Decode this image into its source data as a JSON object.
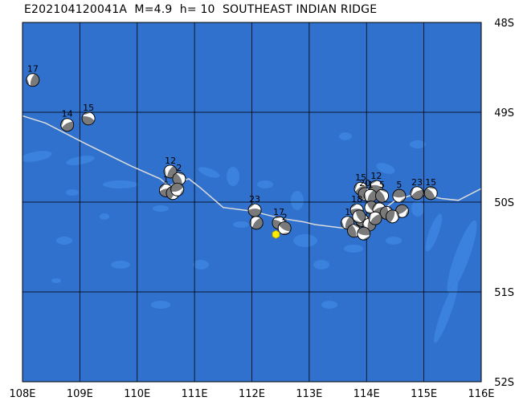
{
  "title": "E202104120041A  M=4.9  h= 10  SOUTHEAST INDIAN RIDGE",
  "map": {
    "lon_range": [
      108,
      116
    ],
    "lat_range": [
      -52,
      -48
    ],
    "lon_ticks": [
      {
        "value": 108,
        "label": "108E"
      },
      {
        "value": 109,
        "label": "109E"
      },
      {
        "value": 110,
        "label": "110E"
      },
      {
        "value": 111,
        "label": "111E"
      },
      {
        "value": 112,
        "label": "112E"
      },
      {
        "value": 113,
        "label": "113E"
      },
      {
        "value": 114,
        "label": "114E"
      },
      {
        "value": 115,
        "label": "115E"
      },
      {
        "value": 116,
        "label": "116E"
      }
    ],
    "lat_ticks": [
      {
        "value": -48,
        "label": "48S"
      },
      {
        "value": -49,
        "label": "49S"
      },
      {
        "value": -50,
        "label": "50S"
      },
      {
        "value": -51,
        "label": "51S"
      },
      {
        "value": -52,
        "label": "52S"
      }
    ],
    "colors": {
      "ocean": "#2f71cc",
      "deep": "#3c84e0",
      "grid": "#000000",
      "ridge": "#dcdcdc",
      "mechanism_dark": "#7a7a7a",
      "mechanism_light": "#ffffff",
      "epicenter": "#ffee00"
    },
    "ridge_line": [
      [
        108.0,
        -49.04
      ],
      [
        108.4,
        -49.12
      ],
      [
        109.1,
        -49.35
      ],
      [
        109.9,
        -49.6
      ],
      [
        110.4,
        -49.74
      ],
      [
        110.55,
        -49.82
      ],
      [
        110.9,
        -49.74
      ],
      [
        111.1,
        -49.84
      ],
      [
        111.5,
        -50.06
      ],
      [
        112.0,
        -50.1
      ],
      [
        112.5,
        -50.18
      ],
      [
        112.9,
        -50.22
      ],
      [
        113.1,
        -50.25
      ],
      [
        113.6,
        -50.29
      ],
      [
        114.0,
        -50.23
      ],
      [
        114.5,
        -49.98
      ],
      [
        114.9,
        -49.9
      ],
      [
        115.3,
        -49.96
      ],
      [
        115.6,
        -49.98
      ],
      [
        116.0,
        -49.85
      ]
    ],
    "epicenter": {
      "lon": 112.42,
      "lat": -50.36
    },
    "events": [
      {
        "lon": 108.18,
        "lat": -48.64,
        "label": "17",
        "rot": 20
      },
      {
        "lon": 108.78,
        "lat": -49.14,
        "label": "14",
        "rot": 60
      },
      {
        "lon": 109.15,
        "lat": -49.07,
        "label": "15",
        "rot": 110
      },
      {
        "lon": 110.58,
        "lat": -49.66,
        "label": "12",
        "rot": 30
      },
      {
        "lon": 110.73,
        "lat": -49.74,
        "label": "2",
        "rot": 150
      },
      {
        "lon": 110.5,
        "lat": -49.87,
        "label": "1",
        "rot": 80
      },
      {
        "lon": 110.62,
        "lat": -49.9,
        "label": "",
        "rot": 200
      },
      {
        "lon": 110.7,
        "lat": -49.86,
        "label": "",
        "rot": 250
      },
      {
        "lon": 112.05,
        "lat": -50.09,
        "label": "23",
        "rot": 90
      },
      {
        "lon": 112.08,
        "lat": -50.23,
        "label": "",
        "rot": 40
      },
      {
        "lon": 112.47,
        "lat": -50.23,
        "label": "17",
        "rot": 120
      },
      {
        "lon": 112.57,
        "lat": -50.29,
        "label": "2",
        "rot": 300
      },
      {
        "lon": 113.9,
        "lat": -49.85,
        "label": "15",
        "rot": 60
      },
      {
        "lon": 114.17,
        "lat": -49.83,
        "label": "12",
        "rot": 100
      },
      {
        "lon": 113.97,
        "lat": -49.91,
        "label": "20",
        "rot": 200
      },
      {
        "lon": 114.07,
        "lat": -49.93,
        "label": "1",
        "rot": 30
      },
      {
        "lon": 114.27,
        "lat": -49.93,
        "label": "5",
        "rot": 150
      },
      {
        "lon": 113.83,
        "lat": -50.09,
        "label": "18",
        "rot": 90
      },
      {
        "lon": 114.57,
        "lat": -49.93,
        "label": "5",
        "rot": 270
      },
      {
        "lon": 114.88,
        "lat": -49.9,
        "label": "23",
        "rot": 60
      },
      {
        "lon": 115.12,
        "lat": -49.9,
        "label": "15",
        "rot": 140
      },
      {
        "lon": 113.67,
        "lat": -50.23,
        "label": "1",
        "rot": 20
      },
      {
        "lon": 114.08,
        "lat": -50.06,
        "label": "",
        "rot": 320
      },
      {
        "lon": 114.22,
        "lat": -50.08,
        "label": "",
        "rot": 70
      },
      {
        "lon": 114.35,
        "lat": -50.12,
        "label": "",
        "rot": 180
      },
      {
        "lon": 114.62,
        "lat": -50.1,
        "label": "",
        "rot": 240
      },
      {
        "lon": 113.92,
        "lat": -50.2,
        "label": "",
        "rot": 110
      },
      {
        "lon": 114.05,
        "lat": -50.25,
        "label": "",
        "rot": 10
      },
      {
        "lon": 113.78,
        "lat": -50.32,
        "label": "",
        "rot": 160
      },
      {
        "lon": 113.95,
        "lat": -50.35,
        "label": "",
        "rot": 280
      },
      {
        "lon": 114.15,
        "lat": -50.18,
        "label": "",
        "rot": 50
      },
      {
        "lon": 114.45,
        "lat": -50.16,
        "label": "",
        "rot": 200
      },
      {
        "lon": 113.87,
        "lat": -50.16,
        "label": "",
        "rot": 330
      }
    ]
  }
}
